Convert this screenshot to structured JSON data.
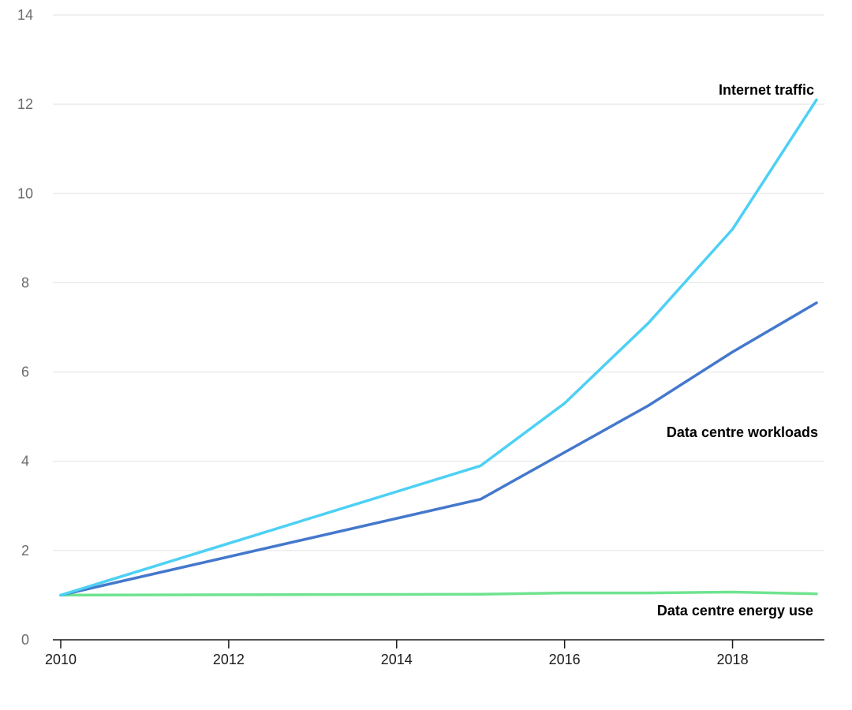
{
  "chart_data": {
    "type": "line",
    "x": [
      2010,
      2015,
      2016,
      2017,
      2018,
      2019
    ],
    "xlim": [
      2010,
      2019
    ],
    "x_ticks": [
      "2010",
      "2012",
      "2014",
      "2016",
      "2018"
    ],
    "ylim": [
      0,
      14
    ],
    "y_ticks": [
      "0",
      "2",
      "4",
      "6",
      "8",
      "10",
      "12",
      "14"
    ],
    "grid": true,
    "legend": "inline labels at series ends",
    "series": [
      {
        "name": "Internet traffic",
        "color": "#4dd0f4",
        "values": [
          1.0,
          3.9,
          5.3,
          7.1,
          9.2,
          12.1
        ]
      },
      {
        "name": "Data centre workloads",
        "color": "#4478cc",
        "values": [
          1.0,
          3.15,
          4.2,
          5.25,
          6.45,
          7.55
        ]
      },
      {
        "name": "Data centre energy use",
        "color": "#6fe38f",
        "values": [
          1.0,
          1.02,
          1.05,
          1.05,
          1.07,
          1.03
        ]
      }
    ]
  }
}
